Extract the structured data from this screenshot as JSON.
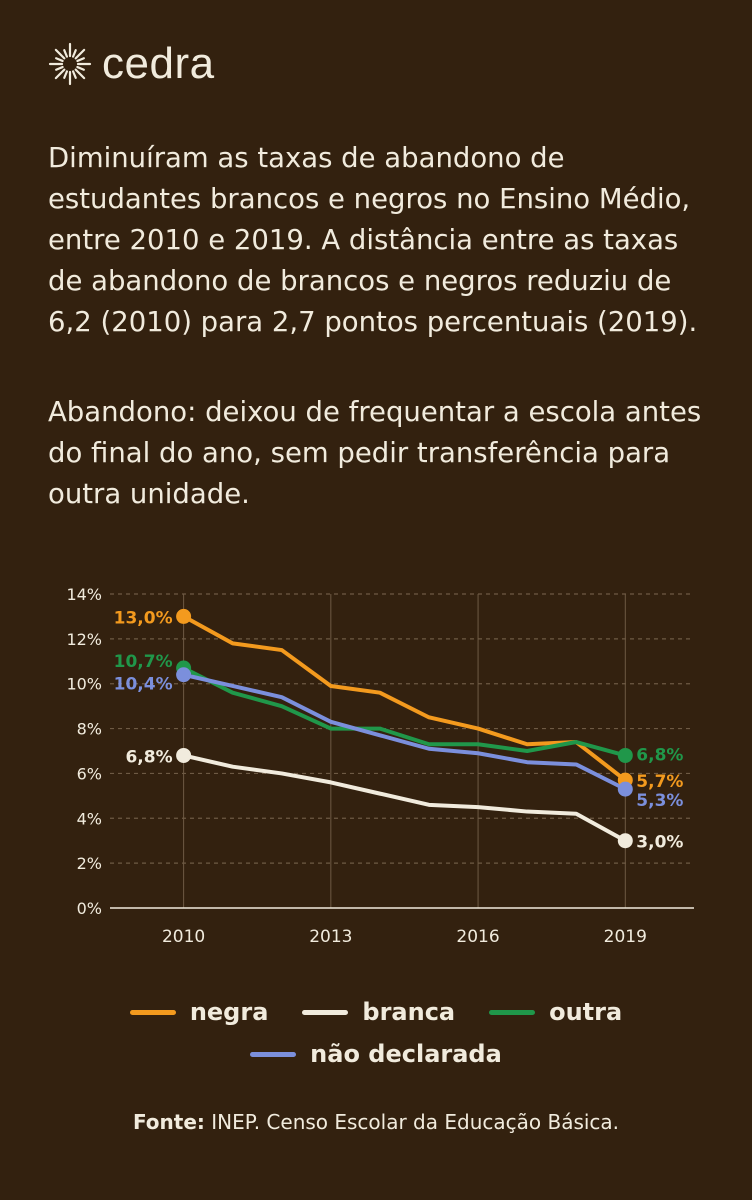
{
  "brand": {
    "name": "cedra",
    "logo_icon": "sun-burst-icon"
  },
  "intro_text": "Diminuíram as taxas de abandono de estudantes brancos e negros no Ensino Médio, entre 2010 e 2019. A distância entre as taxas de abandono de brancos e negros reduziu de 6,2 (2010) para 2,7 pontos percentuais (2019).",
  "definition_text": "Abandono: deixou de frequentar a escola antes do final do ano, sem pedir transferência para outra unidade.",
  "colors": {
    "background": "#33210f",
    "text": "#f1ebdd",
    "negra": "#f39a1e",
    "branca": "#f1ebdd",
    "outra": "#20974a",
    "nao_declarada": "#7b8fdc",
    "grid": "#6e5a44"
  },
  "chart_data": {
    "type": "line",
    "x": [
      2010,
      2011,
      2012,
      2013,
      2014,
      2015,
      2016,
      2017,
      2018,
      2019
    ],
    "x_tick_labels": [
      "2010",
      "2013",
      "2016",
      "2019"
    ],
    "y_tick_labels": [
      "0%",
      "2%",
      "4%",
      "6%",
      "8%",
      "10%",
      "12%",
      "14%"
    ],
    "ylim": [
      0,
      14
    ],
    "xlim": [
      2008.5,
      2020.4
    ],
    "grid": true,
    "legend_placement": "bottom",
    "series": [
      {
        "name": "negra",
        "color_key": "negra",
        "values": [
          13.0,
          11.8,
          11.5,
          9.9,
          9.6,
          8.5,
          8.0,
          7.3,
          7.4,
          5.7
        ],
        "start_label": "13,0%",
        "end_label": "5,7%"
      },
      {
        "name": "branca",
        "color_key": "branca",
        "values": [
          6.8,
          6.3,
          6.0,
          5.6,
          5.1,
          4.6,
          4.5,
          4.3,
          4.2,
          3.0
        ],
        "start_label": "6,8%",
        "end_label": "3,0%"
      },
      {
        "name": "outra",
        "color_key": "outra",
        "values": [
          10.7,
          9.6,
          9.0,
          8.0,
          8.0,
          7.3,
          7.3,
          7.0,
          7.4,
          6.8
        ],
        "start_label": "10,7%",
        "end_label": "6,8%"
      },
      {
        "name": "não declarada",
        "color_key": "nao_declarada",
        "values": [
          10.4,
          9.9,
          9.4,
          8.3,
          7.7,
          7.1,
          6.9,
          6.5,
          6.4,
          5.3
        ],
        "start_label": "10,4%",
        "end_label": "5,3%"
      }
    ]
  },
  "legend": {
    "negra": "negra",
    "branca": "branca",
    "outra": "outra",
    "nao_declarada": "não declarada"
  },
  "source": {
    "label": "Fonte:",
    "text": " INEP. Censo Escolar da Educação Básica."
  }
}
